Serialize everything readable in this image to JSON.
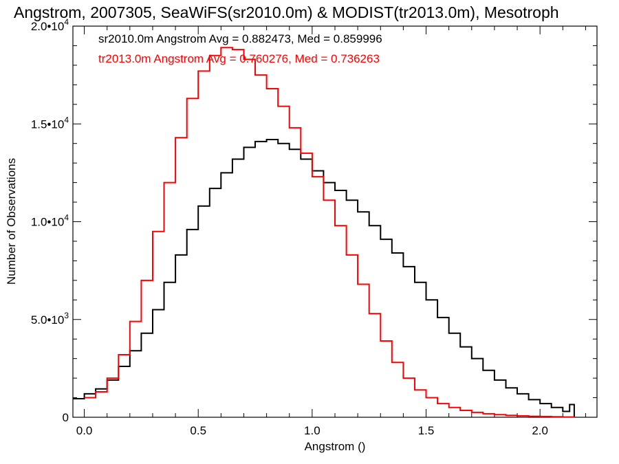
{
  "chart_data": {
    "type": "line",
    "step": true,
    "title": "Angstrom, 2007305, SeaWiFS(sr2010.0m) & MODIST(tr2013.0m), Mesotroph",
    "xlabel": "Angstrom ()",
    "ylabel": "Number of Observations",
    "xlim": [
      -0.05,
      2.25
    ],
    "ylim": [
      0,
      20000
    ],
    "x_ticks": [
      {
        "v": 0.0,
        "label": "0.0"
      },
      {
        "v": 0.5,
        "label": "0.5"
      },
      {
        "v": 1.0,
        "label": "1.0"
      },
      {
        "v": 1.5,
        "label": "1.5"
      },
      {
        "v": 2.0,
        "label": "2.0"
      }
    ],
    "y_ticks": [
      {
        "v": 0,
        "label": "0"
      },
      {
        "v": 5000,
        "label": "5.0•10",
        "exp": "3"
      },
      {
        "v": 10000,
        "label": "1.0•10",
        "exp": "4"
      },
      {
        "v": 15000,
        "label": "1.5•10",
        "exp": "4"
      },
      {
        "v": 20000,
        "label": "2.0•10",
        "exp": "4"
      }
    ],
    "legend": [
      {
        "text": "sr2010.0m Angstrom Avg = 0.882473, Med = 0.859996",
        "color": "#000000"
      },
      {
        "text": "tr2013.0m Angstrom Avg = 0.760276, Med = 0.736263",
        "color": "#ff0000"
      }
    ],
    "series": [
      {
        "color": "#000000",
        "points": [
          [
            -0.05,
            950
          ],
          [
            0.0,
            1200
          ],
          [
            0.05,
            1450
          ],
          [
            0.1,
            1900
          ],
          [
            0.15,
            2600
          ],
          [
            0.2,
            3400
          ],
          [
            0.25,
            4300
          ],
          [
            0.3,
            5500
          ],
          [
            0.35,
            6900
          ],
          [
            0.4,
            8300
          ],
          [
            0.45,
            9600
          ],
          [
            0.5,
            10800
          ],
          [
            0.55,
            11700
          ],
          [
            0.6,
            12500
          ],
          [
            0.65,
            13200
          ],
          [
            0.7,
            13800
          ],
          [
            0.75,
            14100
          ],
          [
            0.8,
            14200
          ],
          [
            0.85,
            14000
          ],
          [
            0.9,
            13700
          ],
          [
            0.95,
            13200
          ],
          [
            1.0,
            12600
          ],
          [
            1.05,
            12000
          ],
          [
            1.1,
            11600
          ],
          [
            1.15,
            11100
          ],
          [
            1.2,
            10500
          ],
          [
            1.25,
            9800
          ],
          [
            1.3,
            9100
          ],
          [
            1.35,
            8400
          ],
          [
            1.4,
            7700
          ],
          [
            1.45,
            6900
          ],
          [
            1.5,
            6000
          ],
          [
            1.55,
            5100
          ],
          [
            1.6,
            4300
          ],
          [
            1.65,
            3600
          ],
          [
            1.7,
            3000
          ],
          [
            1.75,
            2400
          ],
          [
            1.8,
            1900
          ],
          [
            1.85,
            1500
          ],
          [
            1.9,
            1200
          ],
          [
            1.95,
            900
          ],
          [
            2.0,
            700
          ],
          [
            2.05,
            500
          ],
          [
            2.1,
            300
          ],
          [
            2.13,
            650
          ],
          [
            2.15,
            0
          ]
        ]
      },
      {
        "color": "#ff0000",
        "points": [
          [
            0.0,
            1000
          ],
          [
            0.05,
            1300
          ],
          [
            0.1,
            2000
          ],
          [
            0.15,
            3200
          ],
          [
            0.2,
            4900
          ],
          [
            0.25,
            7000
          ],
          [
            0.3,
            9500
          ],
          [
            0.35,
            12000
          ],
          [
            0.4,
            14300
          ],
          [
            0.45,
            16300
          ],
          [
            0.5,
            17700
          ],
          [
            0.55,
            18500
          ],
          [
            0.6,
            18900
          ],
          [
            0.65,
            18800
          ],
          [
            0.7,
            18300
          ],
          [
            0.75,
            17500
          ],
          [
            0.8,
            16800
          ],
          [
            0.85,
            15900
          ],
          [
            0.9,
            14800
          ],
          [
            0.95,
            13500
          ],
          [
            1.0,
            12300
          ],
          [
            1.05,
            11100
          ],
          [
            1.1,
            9800
          ],
          [
            1.15,
            8300
          ],
          [
            1.2,
            6800
          ],
          [
            1.25,
            5300
          ],
          [
            1.3,
            3900
          ],
          [
            1.35,
            2800
          ],
          [
            1.4,
            2000
          ],
          [
            1.45,
            1400
          ],
          [
            1.5,
            1000
          ],
          [
            1.55,
            700
          ],
          [
            1.6,
            500
          ],
          [
            1.65,
            350
          ],
          [
            1.7,
            250
          ],
          [
            1.75,
            180
          ],
          [
            1.8,
            130
          ],
          [
            1.85,
            100
          ],
          [
            1.9,
            70
          ],
          [
            1.95,
            50
          ],
          [
            2.0,
            40
          ],
          [
            2.05,
            25
          ],
          [
            2.1,
            15
          ],
          [
            2.15,
            5
          ]
        ]
      }
    ]
  }
}
